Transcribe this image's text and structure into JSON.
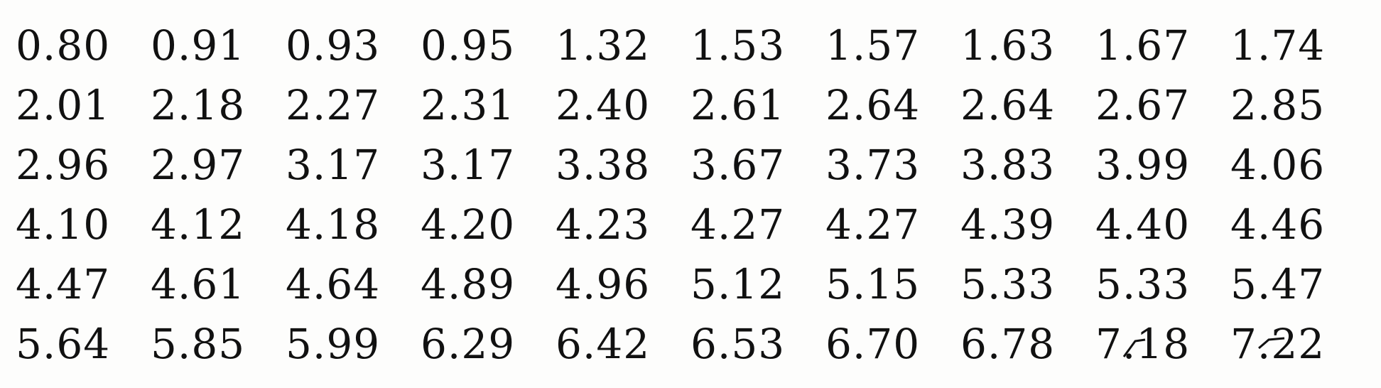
{
  "table": {
    "rows": [
      [
        "0.80",
        "0.91",
        "0.93",
        "0.95",
        "1.32",
        "1.53",
        "1.57",
        "1.63",
        "1.67",
        "1.74"
      ],
      [
        "2.01",
        "2.18",
        "2.27",
        "2.31",
        "2.40",
        "2.61",
        "2.64",
        "2.64",
        "2.67",
        "2.85"
      ],
      [
        "2.96",
        "2.97",
        "3.17",
        "3.17",
        "3.38",
        "3.67",
        "3.73",
        "3.83",
        "3.99",
        "4.06"
      ],
      [
        "4.10",
        "4.12",
        "4.18",
        "4.20",
        "4.23",
        "4.27",
        "4.27",
        "4.39",
        "4.40",
        "4.46"
      ],
      [
        "4.47",
        "4.61",
        "4.64",
        "4.89",
        "4.96",
        "5.12",
        "5.15",
        "5.33",
        "5.33",
        "5.47"
      ],
      [
        "5.64",
        "5.85",
        "5.99",
        "6.29",
        "6.42",
        "6.53",
        "6.70",
        "6.78",
        "7.18",
        "7.22"
      ]
    ]
  },
  "colors": {
    "text": "#111111",
    "background": "#fdfdfc"
  }
}
